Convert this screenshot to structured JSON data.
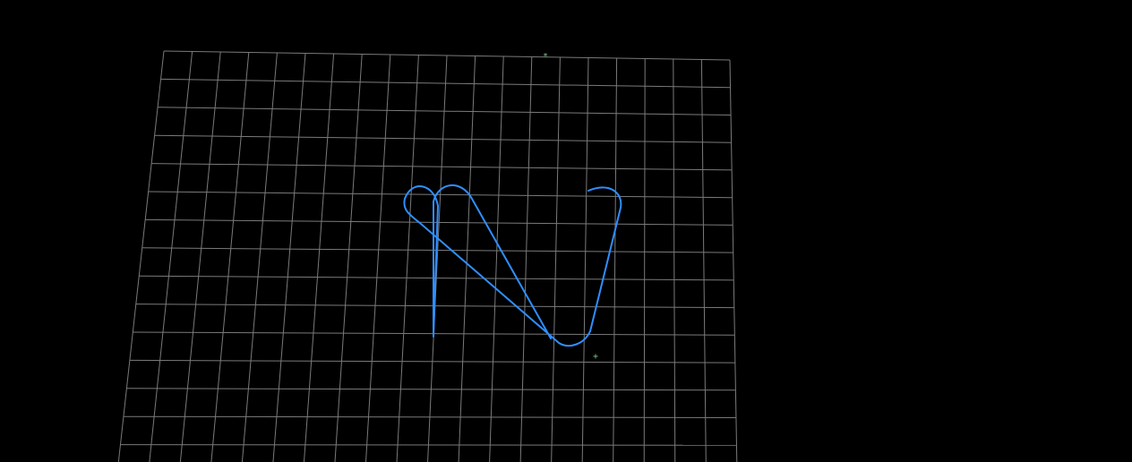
{
  "viewport": {
    "background_color": "#000000",
    "grid": {
      "visible": true,
      "color": "#7a7a7a",
      "columns": 20,
      "rows": 15
    },
    "toolpath": {
      "color": "#2f8fff"
    },
    "markers": {
      "color": "#79c98a",
      "items": [
        {
          "name": "origin-marker",
          "glyph": "*"
        },
        {
          "name": "cursor-marker",
          "glyph": "+"
        }
      ]
    }
  }
}
